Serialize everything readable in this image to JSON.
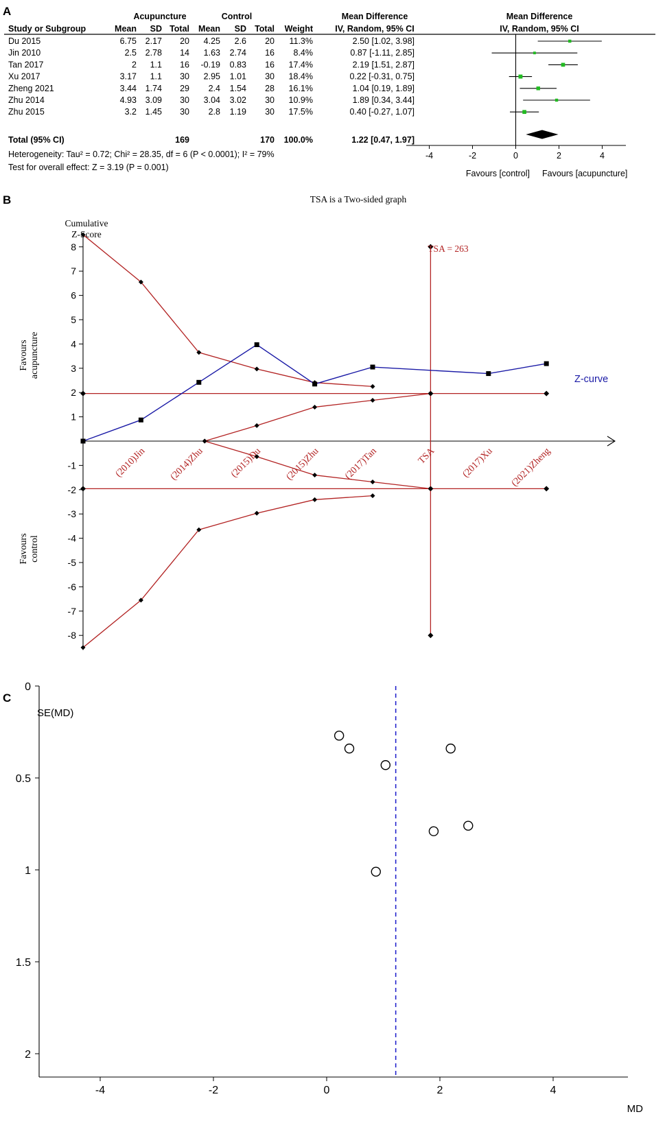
{
  "panel_labels": [
    "A",
    "B",
    "C"
  ],
  "forest": {
    "group_headers": {
      "treatment": "Acupuncture",
      "control": "Control",
      "md_text": "Mean Difference",
      "md_plot": "Mean Difference"
    },
    "columns": [
      "Study or Subgroup",
      "Mean",
      "SD",
      "Total",
      "Mean",
      "SD",
      "Total",
      "Weight",
      "IV, Random, 95% CI",
      "IV, Random, 95% CI"
    ],
    "rows": [
      {
        "study": "Du 2015",
        "t_mean": "6.75",
        "t_sd": "2.17",
        "t_total": "20",
        "c_mean": "4.25",
        "c_sd": "2.6",
        "c_total": "20",
        "weight": "11.3%",
        "ci_text": "2.50 [1.02, 3.98]",
        "md": 2.5,
        "lo": 1.02,
        "hi": 3.98
      },
      {
        "study": "Jin 2010",
        "t_mean": "2.5",
        "t_sd": "2.78",
        "t_total": "14",
        "c_mean": "1.63",
        "c_sd": "2.74",
        "c_total": "16",
        "weight": "8.4%",
        "ci_text": "0.87 [-1.11, 2.85]",
        "md": 0.87,
        "lo": -1.11,
        "hi": 2.85
      },
      {
        "study": "Tan 2017",
        "t_mean": "2",
        "t_sd": "1.1",
        "t_total": "16",
        "c_mean": "-0.19",
        "c_sd": "0.83",
        "c_total": "16",
        "weight": "17.4%",
        "ci_text": "2.19 [1.51, 2.87]",
        "md": 2.19,
        "lo": 1.51,
        "hi": 2.87
      },
      {
        "study": "Xu 2017",
        "t_mean": "3.17",
        "t_sd": "1.1",
        "t_total": "30",
        "c_mean": "2.95",
        "c_sd": "1.01",
        "c_total": "30",
        "weight": "18.4%",
        "ci_text": "0.22 [-0.31, 0.75]",
        "md": 0.22,
        "lo": -0.31,
        "hi": 0.75
      },
      {
        "study": "Zheng 2021",
        "t_mean": "3.44",
        "t_sd": "1.74",
        "t_total": "29",
        "c_mean": "2.4",
        "c_sd": "1.54",
        "c_total": "28",
        "weight": "16.1%",
        "ci_text": "1.04 [0.19, 1.89]",
        "md": 1.04,
        "lo": 0.19,
        "hi": 1.89
      },
      {
        "study": "Zhu 2014",
        "t_mean": "4.93",
        "t_sd": "3.09",
        "t_total": "30",
        "c_mean": "3.04",
        "c_sd": "3.02",
        "c_total": "30",
        "weight": "10.9%",
        "ci_text": "1.89 [0.34, 3.44]",
        "md": 1.89,
        "lo": 0.34,
        "hi": 3.44
      },
      {
        "study": "Zhu 2015",
        "t_mean": "3.2",
        "t_sd": "1.45",
        "t_total": "30",
        "c_mean": "2.8",
        "c_sd": "1.19",
        "c_total": "30",
        "weight": "17.5%",
        "ci_text": "0.40 [-0.27, 1.07]",
        "md": 0.4,
        "lo": -0.27,
        "hi": 1.07
      }
    ],
    "total": {
      "label": "Total (95% CI)",
      "t_total": "169",
      "c_total": "170",
      "weight": "100.0%",
      "ci_text": "1.22 [0.47, 1.97]",
      "md": 1.22,
      "lo": 0.47,
      "hi": 1.97
    },
    "heterogeneity": "Heterogeneity: Tau² = 0.72; Chi² = 28.35, df = 6 (P < 0.0001); I² = 79%",
    "overall_effect": "Test for overall effect: Z = 3.19 (P = 0.001)",
    "axis_ticks": [
      -4,
      -2,
      0,
      2,
      4
    ],
    "favours_left": "Favours [control]",
    "favours_right": "Favours [acupuncture]",
    "marker_color": "#22bb22"
  },
  "tsa": {
    "title": "TSA is a Two-sided graph",
    "ylabel_line1": "Cumulative",
    "ylabel_line2": "Z-Score",
    "y_ticks": [
      8,
      7,
      6,
      5,
      4,
      3,
      2,
      1,
      -1,
      -2,
      -3,
      -4,
      -5,
      -6,
      -7,
      -8
    ],
    "x_labels": [
      "(2010)Jin",
      "(2014)Zhu",
      "(2015)Du",
      "(2015)Zhu",
      "(2017)Tan",
      "TSA",
      "(2017)Xu",
      "(2021)Zheng"
    ],
    "favours_top": [
      "Favours",
      "acupuncture"
    ],
    "favours_bottom": [
      "Favours",
      "control"
    ],
    "tsa_label": "TSA = 263",
    "zcurve_label": "Z-curve",
    "zcurve": [
      [
        0,
        0
      ],
      [
        1,
        0.87
      ],
      [
        2,
        2.42
      ],
      [
        3,
        3.97
      ],
      [
        4,
        2.35
      ],
      [
        5,
        3.05
      ],
      [
        7,
        2.78
      ],
      [
        8,
        3.19
      ]
    ],
    "upper_boundary": [
      [
        0,
        8.5
      ],
      [
        1,
        6.55
      ],
      [
        2,
        3.65
      ],
      [
        3,
        2.97
      ],
      [
        4,
        2.41
      ],
      [
        5,
        2.25
      ]
    ],
    "lower_boundary": [
      [
        0,
        -8.5
      ],
      [
        1,
        -6.55
      ],
      [
        2,
        -3.65
      ],
      [
        3,
        -2.97
      ],
      [
        4,
        -2.41
      ],
      [
        5,
        -2.25
      ]
    ],
    "futility_upper": [
      [
        2.1,
        0
      ],
      [
        3,
        0.64
      ],
      [
        4,
        1.4
      ],
      [
        5,
        1.68
      ],
      [
        6,
        1.96
      ]
    ],
    "futility_lower": [
      [
        2.1,
        0
      ],
      [
        3,
        -0.64
      ],
      [
        4,
        -1.4
      ],
      [
        5,
        -1.68
      ],
      [
        6,
        -1.96
      ]
    ],
    "conventional_boundary": [
      1.96,
      -1.96
    ],
    "tsa_x": 6,
    "tsa_line_range": [
      -8,
      8
    ],
    "red_color": "#b22222",
    "blue_color": "#1a1aa6"
  },
  "funnel": {
    "ylabel": "SE(MD)",
    "xlabel": "MD",
    "x_ticks": [
      -4,
      -2,
      0,
      2,
      4
    ],
    "y_ticks": [
      "0",
      "0.5",
      "1",
      "1.5",
      "2"
    ],
    "pooled_md": 1.22,
    "points": [
      [
        0.22,
        0.27
      ],
      [
        0.4,
        0.34
      ],
      [
        1.04,
        0.43
      ],
      [
        2.19,
        0.34
      ],
      [
        2.5,
        0.76
      ],
      [
        1.89,
        0.79
      ],
      [
        0.87,
        1.01
      ]
    ],
    "line_color": "#2222cc"
  },
  "chart_data": [
    {
      "type": "scatter",
      "title": "",
      "xlabel": "Mean Difference",
      "ylabel": "",
      "categories": [
        "Du 2015",
        "Jin 2010",
        "Tan 2017",
        "Xu 2017",
        "Zheng 2021",
        "Zhu 2014",
        "Zhu 2015",
        "Total (95% CI)"
      ],
      "series": [
        {
          "values": [
            2.5,
            0.87,
            2.19,
            0.22,
            1.04,
            1.89,
            0.4,
            1.22
          ]
        },
        {
          "values": [
            1.02,
            -1.11,
            1.51,
            -0.31,
            0.19,
            0.34,
            -0.27,
            0.47
          ]
        },
        {
          "values": [
            3.98,
            2.85,
            2.87,
            0.75,
            1.89,
            3.44,
            1.07,
            1.97
          ]
        }
      ],
      "xlim": [
        -5,
        5
      ]
    },
    {
      "type": "line",
      "title": "TSA is a Two-sided graph",
      "xlabel": "",
      "ylabel": "Cumulative Z-Score",
      "categories": [
        "",
        "(2010)Jin",
        "(2014)Zhu",
        "(2015)Du",
        "(2015)Zhu",
        "(2017)Tan",
        "TSA",
        "(2017)Xu",
        "(2021)Zheng"
      ],
      "series": [
        {
          "name": "Z-curve",
          "values": [
            0,
            0.87,
            2.42,
            3.97,
            2.35,
            3.05,
            null,
            2.78,
            3.19
          ]
        }
      ],
      "ylim": [
        -8.5,
        8.5
      ]
    },
    {
      "type": "scatter",
      "title": "",
      "xlabel": "MD",
      "ylabel": "SE(MD)",
      "x": [
        0.22,
        0.4,
        1.04,
        2.19,
        2.5,
        1.89,
        0.87
      ],
      "y": [
        0.27,
        0.34,
        0.43,
        0.34,
        0.76,
        0.79,
        1.01
      ],
      "xlim": [
        -5,
        5
      ],
      "ylim": [
        2,
        0
      ]
    }
  ]
}
